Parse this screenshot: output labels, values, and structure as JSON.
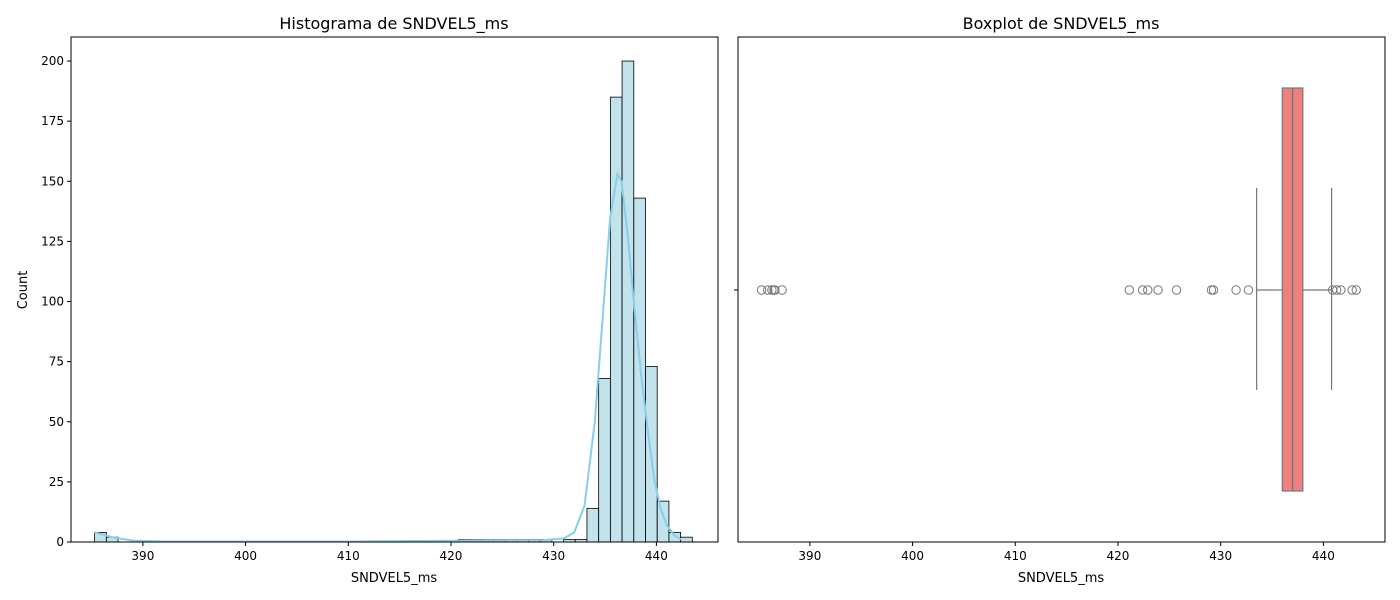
{
  "chart_data": [
    {
      "type": "bar",
      "subtype": "histogram with kde line",
      "title": "Histograma de SNDVEL5_ms",
      "xlabel": "SNDVEL5_ms",
      "ylabel": "Count",
      "xlim": [
        383,
        446
      ],
      "ylim": [
        0,
        210
      ],
      "xticks": [
        390,
        400,
        410,
        420,
        430,
        440
      ],
      "yticks": [
        0,
        25,
        50,
        75,
        100,
        125,
        150,
        175,
        200
      ],
      "grid": false,
      "bar_color": "#add8e6",
      "edge_color": "#000000",
      "line_color": "#87ceeb",
      "bin_width": 1.14,
      "bin_start": 385.3,
      "bins": [
        {
          "x0": 385.3,
          "count": 4
        },
        {
          "x0": 386.44,
          "count": 2
        },
        {
          "x0": 420.7,
          "count": 1
        },
        {
          "x0": 421.84,
          "count": 1
        },
        {
          "x0": 422.98,
          "count": 1
        },
        {
          "x0": 424.12,
          "count": 1
        },
        {
          "x0": 425.26,
          "count": 1
        },
        {
          "x0": 426.4,
          "count": 1
        },
        {
          "x0": 427.54,
          "count": 1
        },
        {
          "x0": 428.68,
          "count": 1
        },
        {
          "x0": 430.96,
          "count": 1
        },
        {
          "x0": 432.1,
          "count": 1
        },
        {
          "x0": 433.24,
          "count": 14
        },
        {
          "x0": 434.38,
          "count": 68
        },
        {
          "x0": 435.52,
          "count": 185
        },
        {
          "x0": 436.66,
          "count": 200
        },
        {
          "x0": 437.8,
          "count": 143
        },
        {
          "x0": 438.94,
          "count": 73
        },
        {
          "x0": 440.08,
          "count": 17
        },
        {
          "x0": 441.22,
          "count": 4
        },
        {
          "x0": 442.36,
          "count": 2
        }
      ],
      "kde": {
        "x": [
          385.3,
          387,
          389,
          392,
          400,
          410,
          420,
          425,
          429,
          431,
          432,
          433,
          434,
          434.8,
          435.5,
          436.2,
          436.6,
          437.2,
          437.8,
          438.5,
          439.2,
          439.8,
          440.4,
          441,
          441.7,
          442.4
        ],
        "y": [
          4,
          2,
          0.6,
          0.2,
          0.2,
          0.2,
          0.5,
          0.7,
          0.8,
          1.5,
          4,
          15,
          50,
          95,
          135,
          153,
          150,
          128,
          100,
          70,
          45,
          26,
          14,
          7,
          3,
          1
        ]
      }
    },
    {
      "type": "box",
      "title": "Boxplot de SNDVEL5_ms",
      "xlabel": "SNDVEL5_ms",
      "xlim": [
        383,
        446
      ],
      "xticks": [
        390,
        400,
        410,
        420,
        430,
        440
      ],
      "grid": false,
      "box_color": "#f08080",
      "q1": 436.0,
      "median": 437.0,
      "q3": 438.0,
      "whisker_low": 433.5,
      "whisker_high": 440.8,
      "outliers": [
        385.3,
        385.9,
        386.3,
        386.5,
        386.6,
        387.3,
        421.1,
        422.4,
        422.9,
        423.9,
        425.7,
        429.1,
        429.3,
        431.5,
        432.7,
        440.9,
        441.3,
        441.7,
        442.8,
        443.2
      ]
    }
  ]
}
